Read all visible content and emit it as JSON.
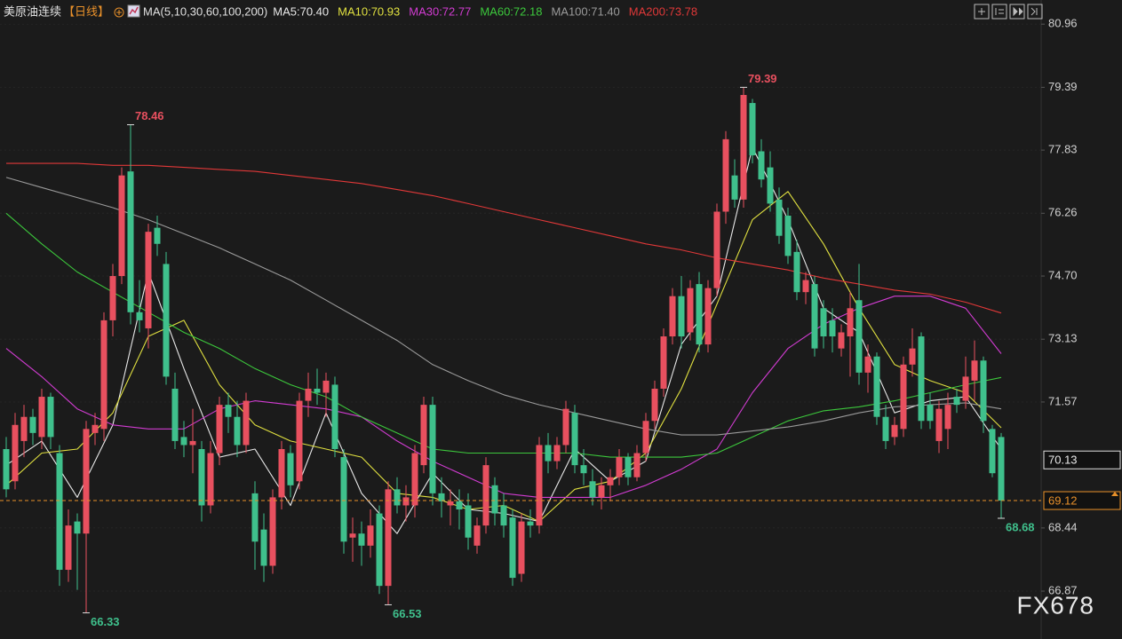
{
  "chart_data": {
    "type": "candlestick",
    "title": "美原油连续",
    "period": "【日线】",
    "ma_label": "MA(5,10,30,60,100,200)",
    "watermark": "FX678",
    "ylim": [
      65.68,
      81.56
    ],
    "yticks": [
      80.96,
      79.39,
      77.83,
      76.26,
      {
        "value": 74.7,
        "label": "74.70"
      },
      73.13,
      71.57,
      68.44,
      66.87
    ],
    "grid": true,
    "up_color": "#e8505f",
    "down_color": "#3fc08c",
    "last_price": 69.12,
    "cursor_price": 70.13,
    "candles": [
      [
        70.4,
        70.7,
        69.2,
        69.4
      ],
      [
        69.6,
        71.3,
        69.4,
        71.0
      ],
      [
        70.6,
        71.5,
        70.2,
        71.2
      ],
      [
        71.2,
        71.4,
        70.5,
        70.8
      ],
      [
        70.7,
        71.9,
        70.4,
        71.7
      ],
      [
        71.7,
        71.8,
        70.4,
        70.7
      ],
      [
        70.3,
        70.5,
        67.0,
        67.4
      ],
      [
        67.4,
        68.9,
        67.1,
        68.5
      ],
      [
        68.6,
        68.8,
        66.9,
        68.3
      ],
      [
        68.3,
        71.1,
        66.33,
        70.9
      ],
      [
        70.8,
        71.3,
        70.5,
        71.0
      ],
      [
        70.9,
        73.8,
        70.6,
        73.6
      ],
      [
        73.6,
        75.0,
        73.2,
        74.7
      ],
      [
        74.7,
        77.4,
        74.5,
        77.2
      ],
      [
        77.3,
        78.46,
        73.5,
        73.8
      ],
      [
        73.8,
        74.6,
        73.3,
        73.6
      ],
      [
        73.4,
        76.0,
        72.9,
        75.8
      ],
      [
        75.9,
        76.2,
        75.2,
        75.5
      ],
      [
        75.0,
        75.3,
        72.0,
        72.2
      ],
      [
        71.9,
        72.3,
        70.4,
        70.6
      ],
      [
        70.7,
        71.1,
        70.2,
        70.5
      ],
      [
        70.5,
        71.4,
        69.8,
        70.6
      ],
      [
        70.4,
        70.6,
        68.6,
        69.0
      ],
      [
        69.0,
        70.6,
        68.8,
        70.3
      ],
      [
        70.3,
        71.7,
        70.0,
        71.5
      ],
      [
        71.5,
        71.8,
        70.8,
        71.2
      ],
      [
        71.2,
        71.6,
        70.2,
        70.5
      ],
      [
        70.5,
        71.8,
        70.3,
        71.6
      ],
      [
        69.3,
        69.6,
        67.4,
        68.1
      ],
      [
        68.4,
        68.8,
        67.1,
        67.5
      ],
      [
        67.5,
        69.4,
        67.3,
        69.2
      ],
      [
        69.2,
        70.6,
        68.9,
        70.4
      ],
      [
        70.3,
        70.5,
        69.2,
        69.5
      ],
      [
        69.6,
        71.8,
        69.4,
        71.6
      ],
      [
        71.6,
        72.3,
        71.2,
        71.9
      ],
      [
        71.9,
        72.4,
        71.5,
        71.8
      ],
      [
        71.8,
        72.3,
        71.2,
        72.1
      ],
      [
        72.0,
        72.2,
        70.2,
        70.4
      ],
      [
        70.2,
        70.4,
        67.8,
        68.1
      ],
      [
        68.2,
        68.7,
        67.6,
        68.3
      ],
      [
        68.3,
        68.6,
        67.5,
        68.0
      ],
      [
        68.0,
        68.9,
        67.7,
        68.5
      ],
      [
        68.8,
        69.0,
        66.8,
        67.0
      ],
      [
        67.0,
        69.6,
        66.53,
        69.4
      ],
      [
        69.4,
        69.7,
        68.8,
        69.0
      ],
      [
        69.0,
        69.5,
        68.6,
        69.2
      ],
      [
        69.0,
        70.5,
        68.7,
        70.3
      ],
      [
        70.0,
        71.7,
        69.8,
        71.5
      ],
      [
        71.5,
        71.7,
        69.0,
        69.3
      ],
      [
        69.3,
        69.7,
        68.7,
        69.1
      ],
      [
        69.0,
        69.4,
        68.5,
        69.1
      ],
      [
        69.1,
        69.4,
        68.4,
        68.9
      ],
      [
        69.0,
        69.3,
        67.9,
        68.2
      ],
      [
        68.0,
        68.7,
        67.8,
        68.5
      ],
      [
        68.5,
        70.2,
        68.3,
        70.0
      ],
      [
        69.5,
        69.7,
        68.5,
        68.8
      ],
      [
        69.0,
        69.3,
        68.2,
        68.5
      ],
      [
        68.7,
        68.9,
        67.0,
        67.2
      ],
      [
        67.3,
        68.8,
        67.1,
        68.6
      ],
      [
        68.6,
        68.9,
        68.2,
        68.5
      ],
      [
        68.5,
        70.7,
        68.3,
        70.5
      ],
      [
        70.5,
        70.8,
        69.8,
        70.1
      ],
      [
        70.1,
        70.7,
        69.9,
        70.5
      ],
      [
        70.5,
        71.6,
        70.3,
        71.4
      ],
      [
        71.3,
        71.5,
        69.8,
        70.0
      ],
      [
        70.0,
        70.4,
        69.5,
        69.8
      ],
      [
        69.6,
        69.9,
        69.0,
        69.2
      ],
      [
        69.2,
        69.7,
        68.9,
        69.5
      ],
      [
        69.5,
        69.9,
        69.1,
        69.7
      ],
      [
        69.7,
        70.4,
        69.5,
        70.2
      ],
      [
        70.2,
        70.3,
        69.5,
        69.7
      ],
      [
        69.7,
        70.5,
        69.6,
        70.3
      ],
      [
        70.3,
        71.3,
        70.1,
        71.1
      ],
      [
        71.1,
        72.1,
        70.9,
        71.9
      ],
      [
        71.9,
        73.4,
        71.7,
        73.2
      ],
      [
        73.2,
        74.4,
        73.0,
        74.2
      ],
      [
        74.2,
        74.7,
        72.9,
        73.2
      ],
      [
        73.3,
        74.6,
        73.1,
        74.4
      ],
      [
        74.5,
        74.8,
        72.8,
        73.0
      ],
      [
        73.0,
        74.6,
        72.8,
        74.4
      ],
      [
        74.4,
        76.5,
        74.2,
        76.3
      ],
      [
        76.3,
        78.3,
        76.0,
        78.1
      ],
      [
        77.2,
        77.6,
        76.4,
        76.6
      ],
      [
        76.6,
        79.39,
        76.4,
        79.2
      ],
      [
        79.0,
        79.1,
        77.5,
        77.7
      ],
      [
        77.8,
        78.1,
        76.9,
        77.1
      ],
      [
        77.4,
        77.8,
        76.3,
        76.5
      ],
      [
        76.6,
        76.9,
        75.5,
        75.7
      ],
      [
        76.2,
        76.4,
        75.0,
        75.2
      ],
      [
        75.3,
        75.6,
        74.1,
        74.3
      ],
      [
        74.3,
        74.8,
        74.0,
        74.6
      ],
      [
        74.5,
        74.7,
        72.7,
        72.9
      ],
      [
        73.9,
        74.1,
        72.9,
        73.2
      ],
      [
        73.6,
        73.9,
        72.8,
        73.2
      ],
      [
        72.9,
        73.5,
        72.7,
        73.3
      ],
      [
        73.2,
        74.3,
        72.2,
        73.9
      ],
      [
        74.1,
        75.0,
        72.0,
        72.3
      ],
      [
        72.3,
        73.0,
        71.8,
        72.7
      ],
      [
        72.7,
        72.8,
        71.0,
        71.2
      ],
      [
        71.2,
        71.5,
        70.4,
        70.6
      ],
      [
        70.7,
        71.2,
        70.5,
        71.0
      ],
      [
        70.9,
        72.7,
        70.7,
        72.5
      ],
      [
        72.5,
        73.4,
        72.2,
        72.9
      ],
      [
        73.2,
        73.3,
        70.9,
        71.1
      ],
      [
        71.5,
        71.8,
        70.9,
        71.1
      ],
      [
        70.6,
        71.6,
        70.3,
        71.4
      ],
      [
        70.9,
        71.8,
        70.4,
        71.5
      ],
      [
        71.7,
        71.9,
        71.3,
        71.5
      ],
      [
        71.6,
        72.7,
        71.4,
        72.2
      ],
      [
        72.1,
        73.1,
        71.6,
        72.6
      ],
      [
        72.6,
        72.7,
        70.8,
        71.1
      ],
      [
        70.9,
        71.0,
        69.7,
        69.8
      ],
      [
        70.7,
        70.8,
        68.68,
        69.12
      ]
    ],
    "ma_x": [
      0,
      4,
      8,
      12,
      16,
      20,
      24,
      28,
      32,
      36,
      40,
      44,
      48,
      52,
      56,
      60,
      64,
      68,
      72,
      76,
      80,
      84,
      88,
      92,
      96,
      100,
      104,
      108,
      112
    ],
    "series": [
      {
        "legend": "MA5:70.40",
        "color": "#e8e8e8",
        "values": [
          70.0,
          70.6,
          69.2,
          71.0,
          74.8,
          72.4,
          70.2,
          70.4,
          69.0,
          71.3,
          69.3,
          68.3,
          69.8,
          68.9,
          68.8,
          68.6,
          70.4,
          69.6,
          70.1,
          73.0,
          74.2,
          77.9,
          76.1,
          73.9,
          73.3,
          71.3,
          71.6,
          71.7,
          70.4
        ]
      },
      {
        "legend": "MA10:70.93",
        "color": "#e0e040",
        "values": [
          69.5,
          70.3,
          70.4,
          71.3,
          73.2,
          73.6,
          72.0,
          71.0,
          70.6,
          70.4,
          70.2,
          69.3,
          69.2,
          68.9,
          69.0,
          68.6,
          69.4,
          69.6,
          70.3,
          71.9,
          74.0,
          76.1,
          76.8,
          75.5,
          73.9,
          72.5,
          72.1,
          71.8,
          70.93
        ]
      },
      {
        "legend": "MA30:72.77",
        "color": "#d23cd2",
        "values": [
          72.9,
          72.2,
          71.4,
          71.0,
          70.9,
          70.9,
          71.4,
          71.6,
          71.5,
          71.4,
          71.2,
          70.6,
          70.1,
          69.7,
          69.3,
          69.2,
          69.2,
          69.2,
          69.5,
          69.9,
          70.4,
          71.8,
          72.9,
          73.5,
          73.9,
          74.2,
          74.2,
          73.9,
          72.77
        ]
      },
      {
        "legend": "MA60:72.18",
        "color": "#3cc83c",
        "values": [
          76.26,
          75.5,
          74.8,
          74.3,
          73.8,
          73.3,
          72.9,
          72.4,
          72.0,
          71.7,
          71.2,
          70.8,
          70.4,
          70.3,
          70.3,
          70.3,
          70.3,
          70.2,
          70.2,
          70.2,
          70.3,
          70.7,
          71.1,
          71.35,
          71.45,
          71.6,
          71.8,
          72.0,
          72.18
        ]
      },
      {
        "legend": "MA100:71.40",
        "color": "#9a9a9a",
        "values": [
          77.15,
          76.9,
          76.65,
          76.4,
          76.1,
          75.75,
          75.4,
          75.0,
          74.6,
          74.1,
          73.6,
          73.1,
          72.5,
          72.1,
          71.75,
          71.5,
          71.3,
          71.1,
          70.9,
          70.75,
          70.75,
          70.85,
          70.95,
          71.1,
          71.3,
          71.45,
          71.5,
          71.55,
          71.4
        ]
      },
      {
        "legend": "MA200:73.78",
        "color": "#e03838",
        "values": [
          77.5,
          77.5,
          77.5,
          77.45,
          77.45,
          77.4,
          77.35,
          77.3,
          77.2,
          77.1,
          77.0,
          76.85,
          76.7,
          76.5,
          76.3,
          76.1,
          75.9,
          75.7,
          75.5,
          75.35,
          75.15,
          75.0,
          74.85,
          74.65,
          74.5,
          74.35,
          74.25,
          74.05,
          73.78
        ]
      }
    ]
  }
}
